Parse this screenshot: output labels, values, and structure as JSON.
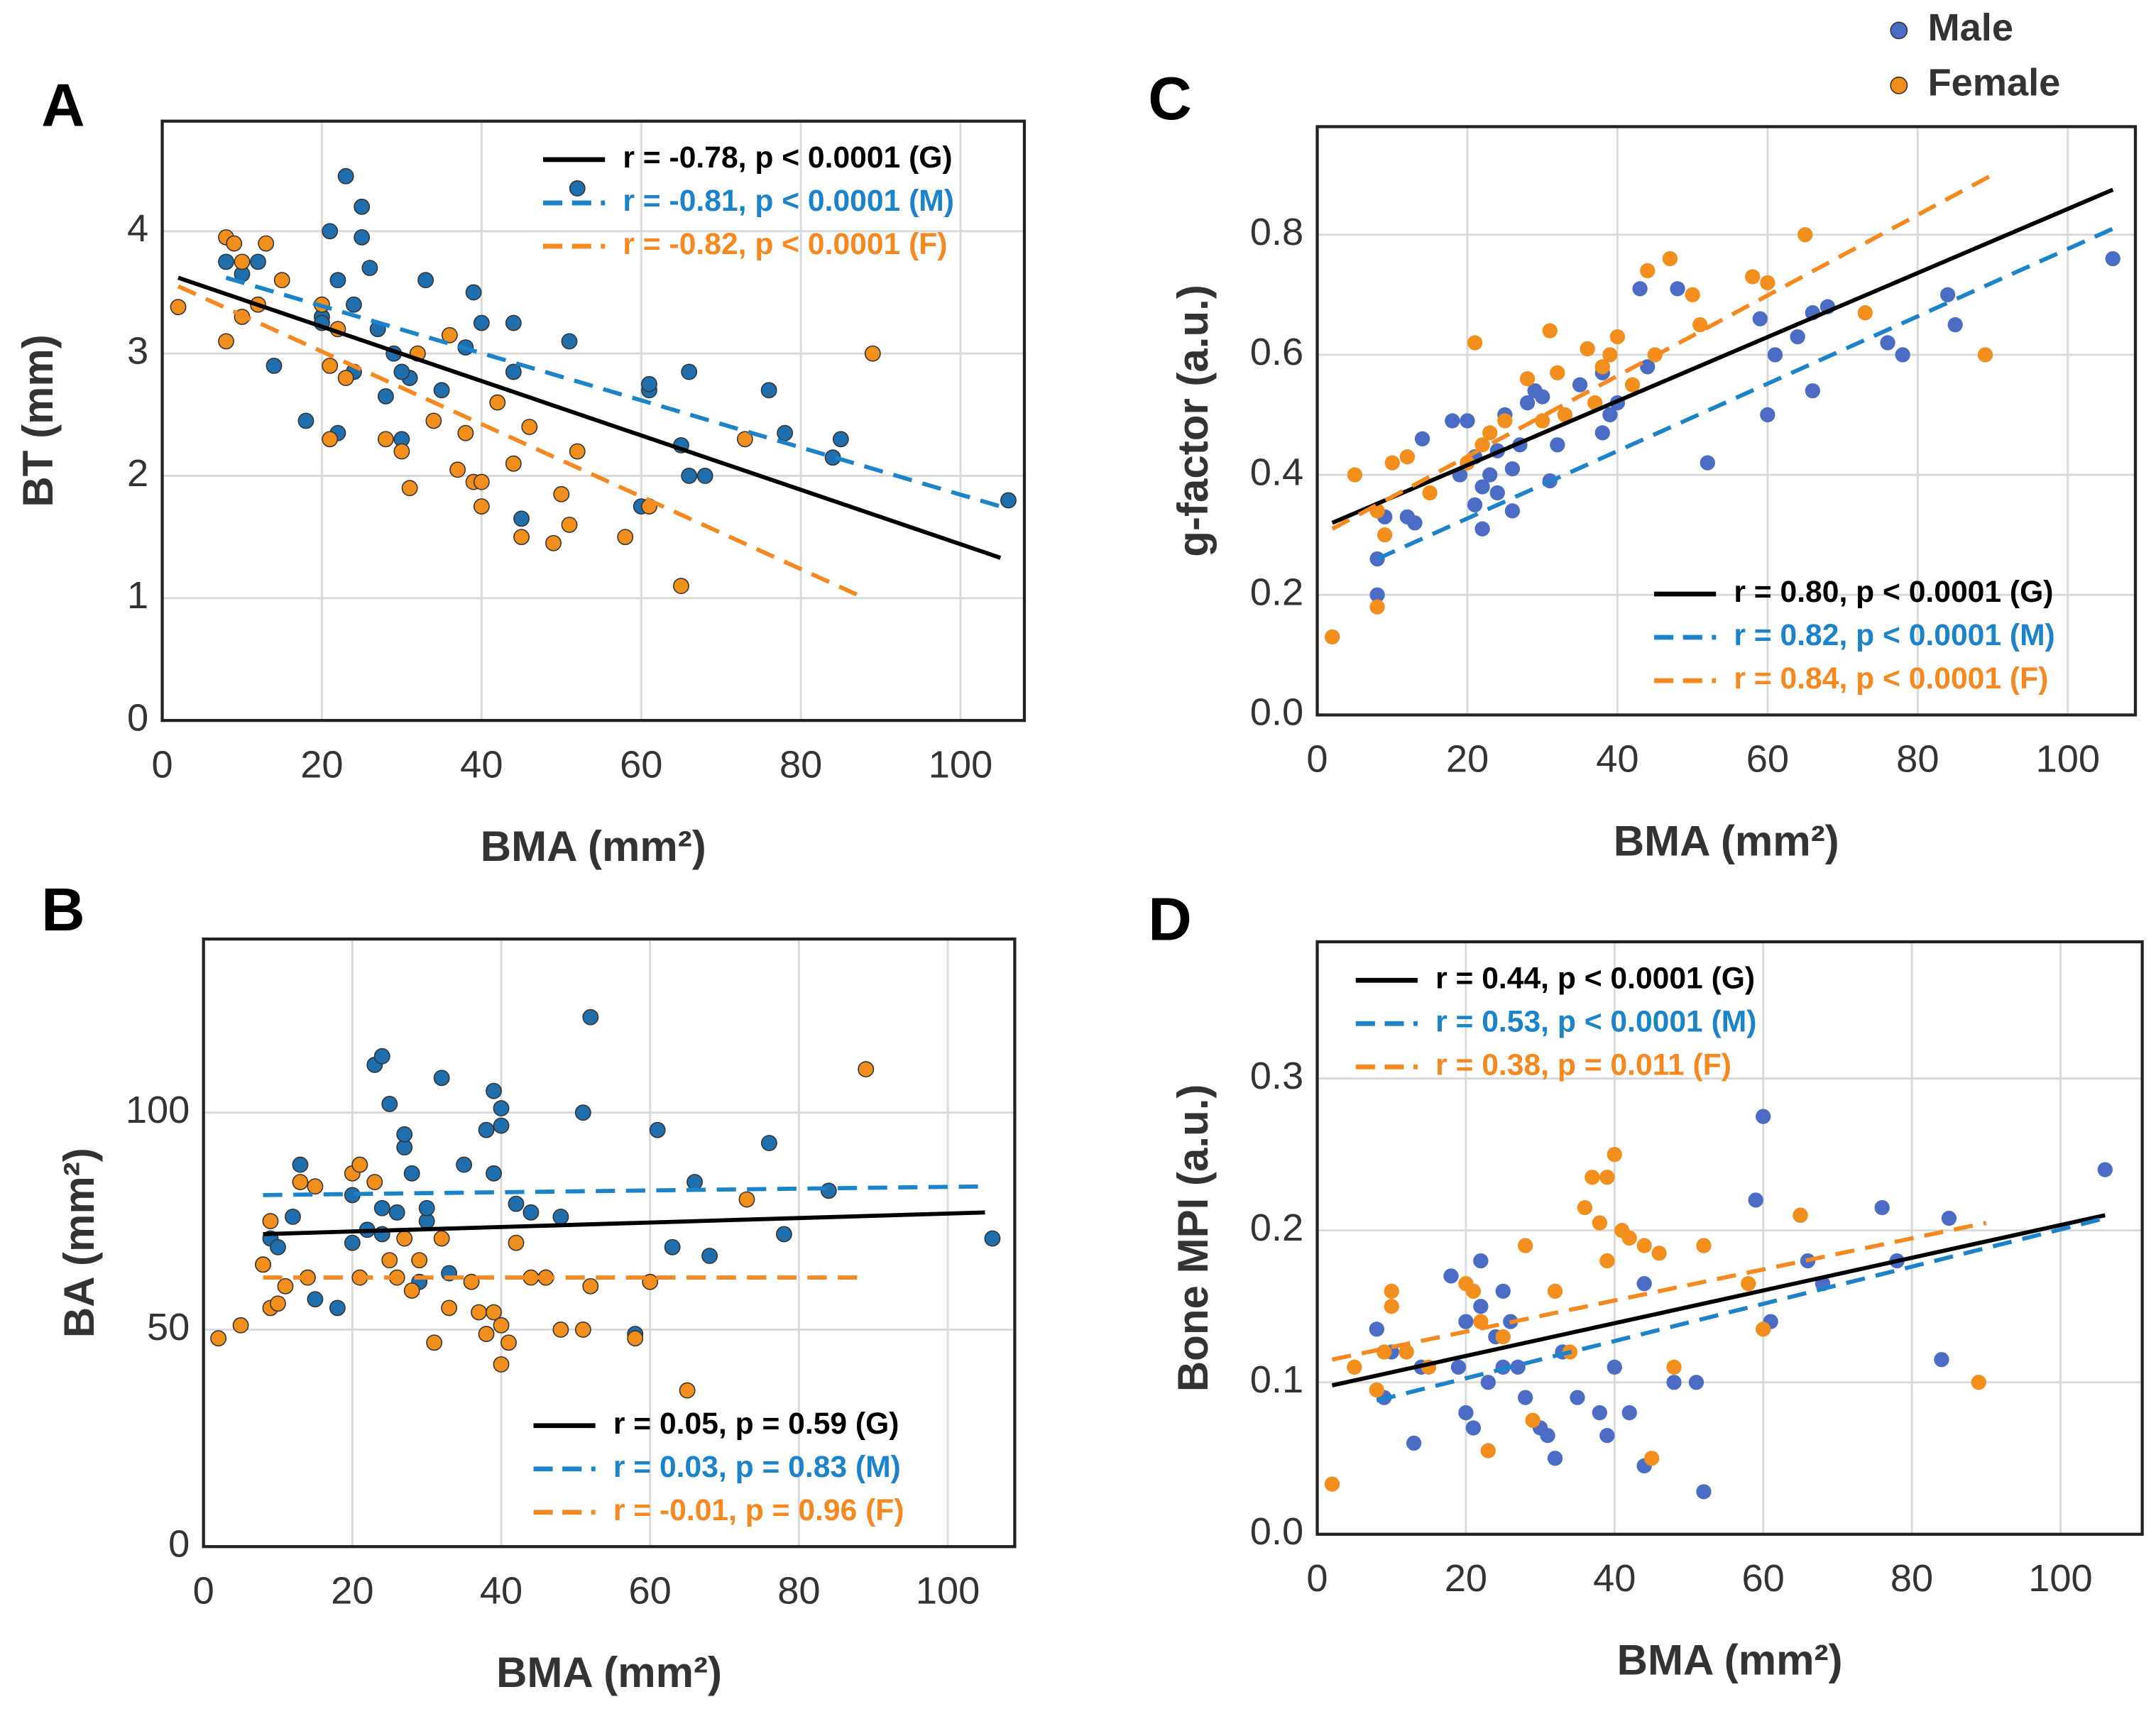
{
  "chart_data": [
    {
      "type": "scatter",
      "panel_label": "A",
      "xlabel": "BMA (mm²)",
      "ylabel": "BT (mm)",
      "xlim": [
        0,
        108
      ],
      "ylim": [
        0,
        4.9
      ],
      "xticks": [
        0,
        20,
        40,
        60,
        80,
        100
      ],
      "yticks": [
        0,
        1,
        2,
        3,
        4
      ],
      "grid": true,
      "legend": "upper right",
      "marker_edge": "#333333",
      "series": [
        {
          "color": "#1f6fae",
          "x": [
            8,
            10,
            12,
            14,
            18,
            20,
            21,
            22,
            22,
            23,
            24,
            25,
            25,
            26,
            27,
            28,
            29,
            30,
            31,
            33,
            35,
            38,
            39,
            40,
            44,
            44,
            45,
            52,
            51,
            60,
            61,
            61,
            65,
            66,
            66,
            68,
            76,
            78,
            84,
            85,
            106,
            30,
            20,
            24
          ],
          "values": [
            3.75,
            3.65,
            3.75,
            2.9,
            2.45,
            3.3,
            4.0,
            3.6,
            2.35,
            4.45,
            3.4,
            4.2,
            3.95,
            3.7,
            3.2,
            2.65,
            3.0,
            2.3,
            2.8,
            3.6,
            2.7,
            3.05,
            3.5,
            3.25,
            2.85,
            3.25,
            1.65,
            4.35,
            3.1,
            1.75,
            2.7,
            2.75,
            2.25,
            2.0,
            2.85,
            2.0,
            2.7,
            2.35,
            2.15,
            2.3,
            1.8,
            2.85,
            3.25,
            2.85
          ]
        },
        {
          "color": "#f28e1c",
          "x": [
            2,
            8,
            8,
            9,
            10,
            10,
            12,
            13,
            15,
            20,
            21,
            21,
            22,
            23,
            28,
            30,
            31,
            32,
            34,
            36,
            37,
            38,
            39,
            40,
            40,
            42,
            44,
            45,
            46,
            49,
            50,
            51,
            52,
            58,
            61,
            65,
            73,
            89
          ],
          "values": [
            3.38,
            3.95,
            3.1,
            3.9,
            3.75,
            3.3,
            3.4,
            3.9,
            3.6,
            3.4,
            2.9,
            2.3,
            3.2,
            2.8,
            2.3,
            2.2,
            1.9,
            3.0,
            2.45,
            3.15,
            2.05,
            2.35,
            1.95,
            1.75,
            1.95,
            2.6,
            2.1,
            1.5,
            2.4,
            1.45,
            1.85,
            1.6,
            2.2,
            1.5,
            1.75,
            1.1,
            2.3,
            3.0
          ]
        }
      ],
      "fits": [
        {
          "label": "r = -0.78, p < 0.0001 (G)",
          "color": "#000000",
          "dashed": false,
          "x": [
            2,
            105
          ],
          "values": [
            3.62,
            1.33
          ]
        },
        {
          "label": "r = -0.81, p < 0.0001 (M)",
          "color": "#1b83c9",
          "dashed": true,
          "x": [
            8,
            105
          ],
          "values": [
            3.62,
            1.75
          ]
        },
        {
          "label": "r = -0.82, p < 0.0001 (F)",
          "color": "#f5891f",
          "dashed": true,
          "x": [
            2,
            88
          ],
          "values": [
            3.55,
            1.0
          ]
        }
      ]
    },
    {
      "type": "scatter",
      "panel_label": "B",
      "xlabel": "BMA (mm²)",
      "ylabel": "BA (mm²)",
      "xlim": [
        0,
        109
      ],
      "ylim": [
        0,
        140
      ],
      "xticks": [
        0,
        20,
        40,
        60,
        80,
        100
      ],
      "yticks": [
        0,
        50,
        100
      ],
      "grid": true,
      "legend": "lower right",
      "marker_edge": "#333333",
      "series": [
        {
          "color": "#1f6fae",
          "x": [
            8,
            9,
            10,
            12,
            13,
            15,
            18,
            20,
            21,
            22,
            23,
            24,
            24,
            25,
            26,
            27,
            27,
            28,
            29,
            30,
            32,
            33,
            35,
            38,
            39,
            39,
            40,
            40,
            42,
            44,
            48,
            51,
            52,
            58,
            61,
            63,
            66,
            68,
            76,
            78,
            84,
            106,
            24,
            20,
            30
          ],
          "values": [
            65,
            71,
            69,
            76,
            88,
            57,
            55,
            81,
            88,
            73,
            111,
            113,
            78,
            102,
            77,
            92,
            95,
            86,
            61,
            75,
            108,
            63,
            88,
            96,
            105,
            86,
            97,
            101,
            79,
            77,
            76,
            100,
            122,
            49,
            96,
            69,
            84,
            67,
            93,
            72,
            82,
            71,
            72,
            70,
            78
          ]
        },
        {
          "color": "#f28e1c",
          "x": [
            2,
            5,
            8,
            9,
            9,
            10,
            11,
            13,
            14,
            15,
            20,
            21,
            21,
            23,
            25,
            26,
            27,
            28,
            29,
            31,
            32,
            33,
            36,
            37,
            38,
            39,
            40,
            40,
            41,
            42,
            44,
            46,
            48,
            51,
            52,
            58,
            60,
            65,
            73,
            89
          ],
          "values": [
            48,
            51,
            65,
            55,
            75,
            56,
            60,
            84,
            62,
            83,
            86,
            62,
            88,
            84,
            66,
            62,
            71,
            59,
            66,
            47,
            71,
            55,
            61,
            54,
            49,
            54,
            42,
            51,
            47,
            70,
            62,
            62,
            50,
            50,
            60,
            48,
            61,
            36,
            80,
            110
          ]
        }
      ],
      "fits": [
        {
          "label": "r = 0.05,  p = 0.59 (G)",
          "color": "#000000",
          "dashed": false,
          "x": [
            8,
            105
          ],
          "values": [
            72,
            77
          ]
        },
        {
          "label": "r = 0.03,  p = 0.83 (M)",
          "color": "#1b83c9",
          "dashed": true,
          "x": [
            8,
            105
          ],
          "values": [
            81,
            83
          ]
        },
        {
          "label": "r = -0.01, p = 0.96 (F)",
          "color": "#f5891f",
          "dashed": true,
          "x": [
            8,
            88
          ],
          "values": [
            62,
            62
          ]
        }
      ]
    },
    {
      "type": "scatter",
      "panel_label": "C",
      "xlabel": "BMA (mm²)",
      "ylabel": "g-factor (a.u.)",
      "xlim": [
        0,
        109
      ],
      "ylim": [
        0,
        0.98
      ],
      "xticks": [
        0,
        20,
        40,
        60,
        80,
        100
      ],
      "yticks": [
        {
          "value": 0,
          "label": "0.0"
        },
        0.2,
        0.4,
        0.6,
        0.8
      ],
      "grid": true,
      "legend": "lower right",
      "series": [
        {
          "name": "Male",
          "color": "#4a6cc4",
          "x": [
            8,
            8,
            9,
            12,
            13,
            14,
            18,
            19,
            20,
            21,
            21,
            22,
            22,
            23,
            24,
            24,
            25,
            26,
            26,
            27,
            28,
            29,
            30,
            31,
            32,
            35,
            38,
            38,
            39,
            40,
            43,
            44,
            48,
            52,
            59,
            60,
            61,
            64,
            66,
            66,
            68,
            76,
            78,
            84,
            85,
            106
          ],
          "values": [
            0.26,
            0.2,
            0.33,
            0.33,
            0.32,
            0.46,
            0.49,
            0.4,
            0.49,
            0.35,
            0.43,
            0.38,
            0.31,
            0.4,
            0.44,
            0.37,
            0.5,
            0.41,
            0.34,
            0.45,
            0.52,
            0.54,
            0.53,
            0.39,
            0.45,
            0.55,
            0.57,
            0.47,
            0.5,
            0.52,
            0.71,
            0.58,
            0.71,
            0.42,
            0.66,
            0.5,
            0.6,
            0.63,
            0.67,
            0.54,
            0.68,
            0.62,
            0.6,
            0.7,
            0.65,
            0.76
          ]
        },
        {
          "name": "Female",
          "color": "#f28e1c",
          "x": [
            2,
            5,
            8,
            8,
            9,
            10,
            12,
            15,
            20,
            21,
            22,
            23,
            25,
            28,
            30,
            31,
            32,
            33,
            36,
            37,
            38,
            39,
            40,
            42,
            44,
            45,
            47,
            50,
            51,
            58,
            60,
            65,
            73,
            89
          ],
          "values": [
            0.13,
            0.4,
            0.34,
            0.18,
            0.3,
            0.42,
            0.43,
            0.37,
            0.42,
            0.62,
            0.45,
            0.47,
            0.49,
            0.56,
            0.49,
            0.64,
            0.57,
            0.5,
            0.61,
            0.52,
            0.58,
            0.6,
            0.63,
            0.55,
            0.74,
            0.6,
            0.76,
            0.7,
            0.65,
            0.73,
            0.72,
            0.8,
            0.67,
            0.6
          ]
        }
      ],
      "fits": [
        {
          "label": "r = 0.80, p < 0.0001 (G)",
          "color": "#000000",
          "dashed": false,
          "x": [
            2,
            106
          ],
          "values": [
            0.32,
            0.875
          ]
        },
        {
          "label": "r = 0.82, p < 0.0001 (M)",
          "color": "#1b83c9",
          "dashed": true,
          "x": [
            8,
            106
          ],
          "values": [
            0.26,
            0.81
          ]
        },
        {
          "label": "r = 0.84, p < 0.0001 (F)",
          "color": "#f5891f",
          "dashed": true,
          "x": [
            2,
            90
          ],
          "values": [
            0.31,
            0.9
          ]
        }
      ]
    },
    {
      "type": "scatter",
      "panel_label": "D",
      "xlabel": "BMA (mm²)",
      "ylabel": "Bone MPI (a.u.)",
      "xlim": [
        0,
        111
      ],
      "ylim": [
        0,
        0.39
      ],
      "xticks": [
        0,
        20,
        40,
        60,
        80,
        100
      ],
      "yticks": [
        {
          "value": 0,
          "label": "0.0"
        },
        0.1,
        0.2,
        0.3
      ],
      "grid": true,
      "legend": "upper left",
      "series": [
        {
          "color": "#4a6cc4",
          "x": [
            8,
            9,
            10,
            13,
            14,
            18,
            19,
            20,
            20,
            21,
            22,
            22,
            23,
            24,
            25,
            25,
            26,
            27,
            28,
            30,
            31,
            32,
            33,
            35,
            38,
            39,
            40,
            42,
            44,
            44,
            48,
            51,
            52,
            59,
            60,
            61,
            65,
            66,
            68,
            76,
            78,
            84,
            85,
            106
          ],
          "values": [
            0.135,
            0.09,
            0.12,
            0.06,
            0.11,
            0.17,
            0.11,
            0.08,
            0.14,
            0.07,
            0.15,
            0.18,
            0.1,
            0.13,
            0.11,
            0.16,
            0.14,
            0.11,
            0.09,
            0.07,
            0.065,
            0.05,
            0.12,
            0.09,
            0.08,
            0.065,
            0.11,
            0.08,
            0.045,
            0.165,
            0.1,
            0.1,
            0.028,
            0.22,
            0.275,
            0.14,
            0.21,
            0.18,
            0.165,
            0.215,
            0.18,
            0.115,
            0.208,
            0.24
          ]
        },
        {
          "color": "#f28e1c",
          "x": [
            2,
            5,
            8,
            9,
            10,
            10,
            12,
            15,
            20,
            21,
            22,
            23,
            25,
            28,
            29,
            32,
            34,
            36,
            37,
            38,
            39,
            39,
            40,
            41,
            42,
            44,
            45,
            46,
            48,
            52,
            58,
            60,
            65,
            89
          ],
          "values": [
            0.033,
            0.11,
            0.095,
            0.12,
            0.16,
            0.15,
            0.12,
            0.11,
            0.165,
            0.16,
            0.14,
            0.055,
            0.13,
            0.19,
            0.075,
            0.16,
            0.12,
            0.215,
            0.235,
            0.205,
            0.18,
            0.235,
            0.25,
            0.2,
            0.195,
            0.19,
            0.05,
            0.185,
            0.11,
            0.19,
            0.165,
            0.135,
            0.21,
            0.1
          ]
        }
      ],
      "fits": [
        {
          "label": "r = 0.44, p < 0.0001 (G)",
          "color": "#000000",
          "dashed": false,
          "x": [
            2,
            106
          ],
          "values": [
            0.098,
            0.21
          ]
        },
        {
          "label": "r = 0.53, p < 0.0001 (M)",
          "color": "#1b83c9",
          "dashed": true,
          "x": [
            8,
            106
          ],
          "values": [
            0.088,
            0.208
          ]
        },
        {
          "label": "r = 0.38, p = 0.011   (F)",
          "color": "#f5891f",
          "dashed": true,
          "x": [
            2,
            90
          ],
          "values": [
            0.115,
            0.205
          ]
        }
      ]
    }
  ]
}
